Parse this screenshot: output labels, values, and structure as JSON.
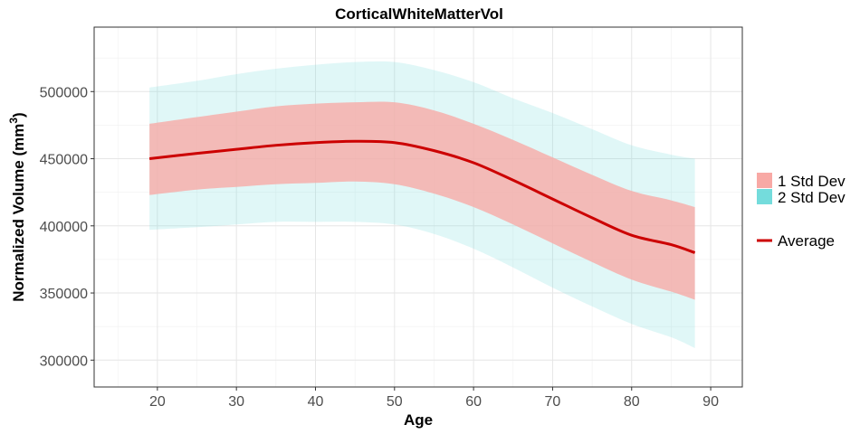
{
  "chart_data": {
    "type": "area",
    "title": "CorticalWhiteMatterVol",
    "xlabel": "Age",
    "ylabel_main": "Normalized Volume   (mm",
    "ylabel_sup": "3",
    "ylabel_close": ")",
    "xlim": [
      12,
      94
    ],
    "ylim": [
      280000,
      548000
    ],
    "x_ticks": [
      20,
      30,
      40,
      50,
      60,
      70,
      80,
      90
    ],
    "y_ticks": [
      300000,
      350000,
      400000,
      450000,
      500000
    ],
    "grid": true,
    "legend_position": "right",
    "x": [
      19,
      25,
      30,
      35,
      40,
      45,
      50,
      55,
      60,
      65,
      70,
      75,
      80,
      85,
      88
    ],
    "series": [
      {
        "name": "Average",
        "color": "#cc0000",
        "values": [
          450000,
          454000,
          457000,
          460000,
          462000,
          463000,
          462000,
          456000,
          447000,
          434000,
          420000,
          406000,
          393000,
          386000,
          380000
        ]
      },
      {
        "name": "1 Std Dev",
        "color": "#f8a9a5",
        "lower": [
          423000,
          427000,
          429000,
          431000,
          432000,
          433000,
          431000,
          424000,
          414000,
          401000,
          387000,
          373000,
          360000,
          351000,
          345000
        ],
        "upper": [
          476000,
          481000,
          485000,
          489000,
          491000,
          492000,
          492000,
          486000,
          476000,
          464000,
          451000,
          438000,
          426000,
          419000,
          414000
        ]
      },
      {
        "name": "2 Std Dev",
        "color": "#74dcdc",
        "lower": [
          397000,
          399000,
          401000,
          403000,
          403000,
          403000,
          401000,
          394000,
          383000,
          369000,
          354000,
          340000,
          327000,
          317000,
          309000
        ],
        "upper": [
          503000,
          508000,
          513000,
          517000,
          520000,
          522000,
          522000,
          516000,
          507000,
          495000,
          484000,
          472000,
          460000,
          453000,
          450000
        ]
      }
    ]
  },
  "legend": {
    "std1_label": "1 Std Dev",
    "std2_label": "2 Std Dev",
    "avg_label": "Average"
  }
}
